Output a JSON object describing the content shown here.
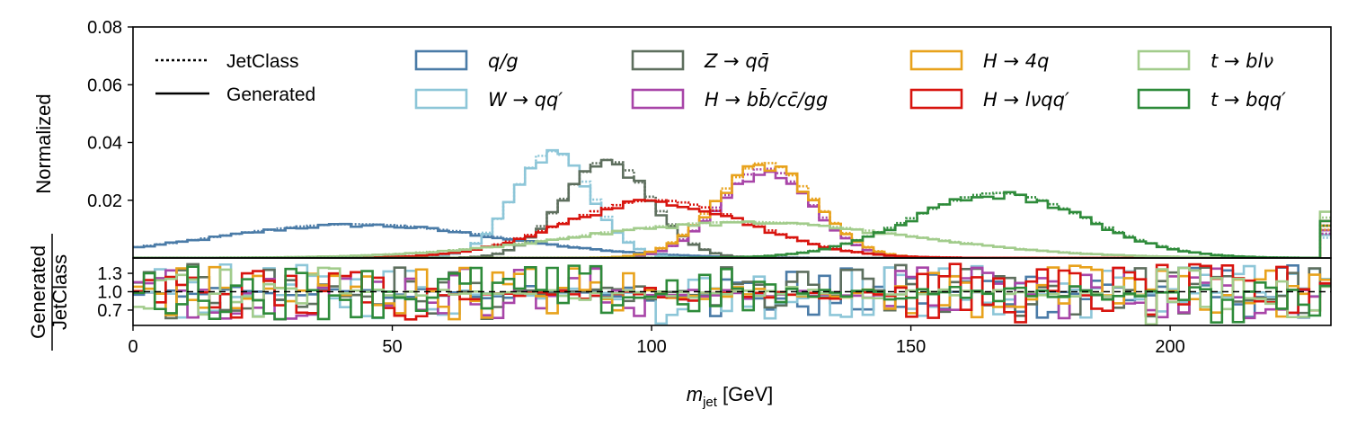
{
  "chart_data": [
    {
      "type": "line",
      "panel": "main",
      "title": "",
      "xlabel": "m_jet [GeV]",
      "xlabel_parts": {
        "var": "m",
        "sub": "jet",
        "unit": " [GeV]"
      },
      "ylabel": "Normalized",
      "xlim": [
        0,
        231
      ],
      "ylim": [
        0,
        0.08
      ],
      "xticks": [
        0,
        50,
        100,
        150,
        200
      ],
      "yticks": [
        0.02,
        0.04,
        0.06,
        0.08
      ],
      "ytick_labels": [
        "0.02",
        "0.04",
        "0.06",
        "0.08"
      ],
      "legend_style": [
        {
          "label": "JetClass",
          "dash": "dotted"
        },
        {
          "label": "Generated",
          "dash": "solid"
        }
      ],
      "series": [
        {
          "name": "q/g",
          "color": "#4a7ba7",
          "peaks": [
            {
              "mu": 43,
              "sigma": 28,
              "amp": 0.0117
            }
          ],
          "tail": 0.0008
        },
        {
          "name": "W → qq′",
          "color": "#8dc6d8",
          "peaks": [
            {
              "mu": 81,
              "sigma": 7.5,
              "amp": 0.037
            }
          ],
          "tail": 0.0005
        },
        {
          "name": "Z → qq̄",
          "color": "#5e6f5e",
          "peaks": [
            {
              "mu": 91.5,
              "sigma": 8.5,
              "amp": 0.034
            }
          ],
          "tail": 0.0006
        },
        {
          "name": "H → bb̄/cc̄/gg",
          "color": "#a845a8",
          "peaks": [
            {
              "mu": 122,
              "sigma": 9,
              "amp": 0.031
            }
          ],
          "tail": 0.0006
        },
        {
          "name": "H → 4q",
          "color": "#e8a21c",
          "peaks": [
            {
              "mu": 122,
              "sigma": 9.5,
              "amp": 0.033
            }
          ],
          "tail": 0.0007
        },
        {
          "name": "H → lνqq′",
          "color": "#d8140e",
          "peaks": [
            {
              "mu": 101,
              "sigma": 18,
              "amp": 0.02
            }
          ],
          "tail": 0.0008
        },
        {
          "name": "t → blν",
          "color": "#a2cc8c",
          "peaks": [
            {
              "mu": 118,
              "sigma": 32,
              "amp": 0.0125
            }
          ],
          "tail": 0.001
        },
        {
          "name": "t → bqq′",
          "color": "#2e8b3a",
          "peaks": [
            {
              "mu": 167,
              "sigma": 17,
              "amp": 0.0225
            }
          ],
          "tail": 0.0008
        }
      ]
    },
    {
      "type": "line",
      "panel": "ratio",
      "ylabel": "Generated / JetClass",
      "ylabel_num": "Generated",
      "ylabel_den": "JetClass",
      "xlim": [
        0,
        231
      ],
      "ylim": [
        0.45,
        1.55
      ],
      "yticks": [
        0.7,
        1.0,
        1.3
      ],
      "ytick_labels": [
        "0.7",
        "1.0",
        "1.3"
      ],
      "reference_line": 1.0
    }
  ]
}
